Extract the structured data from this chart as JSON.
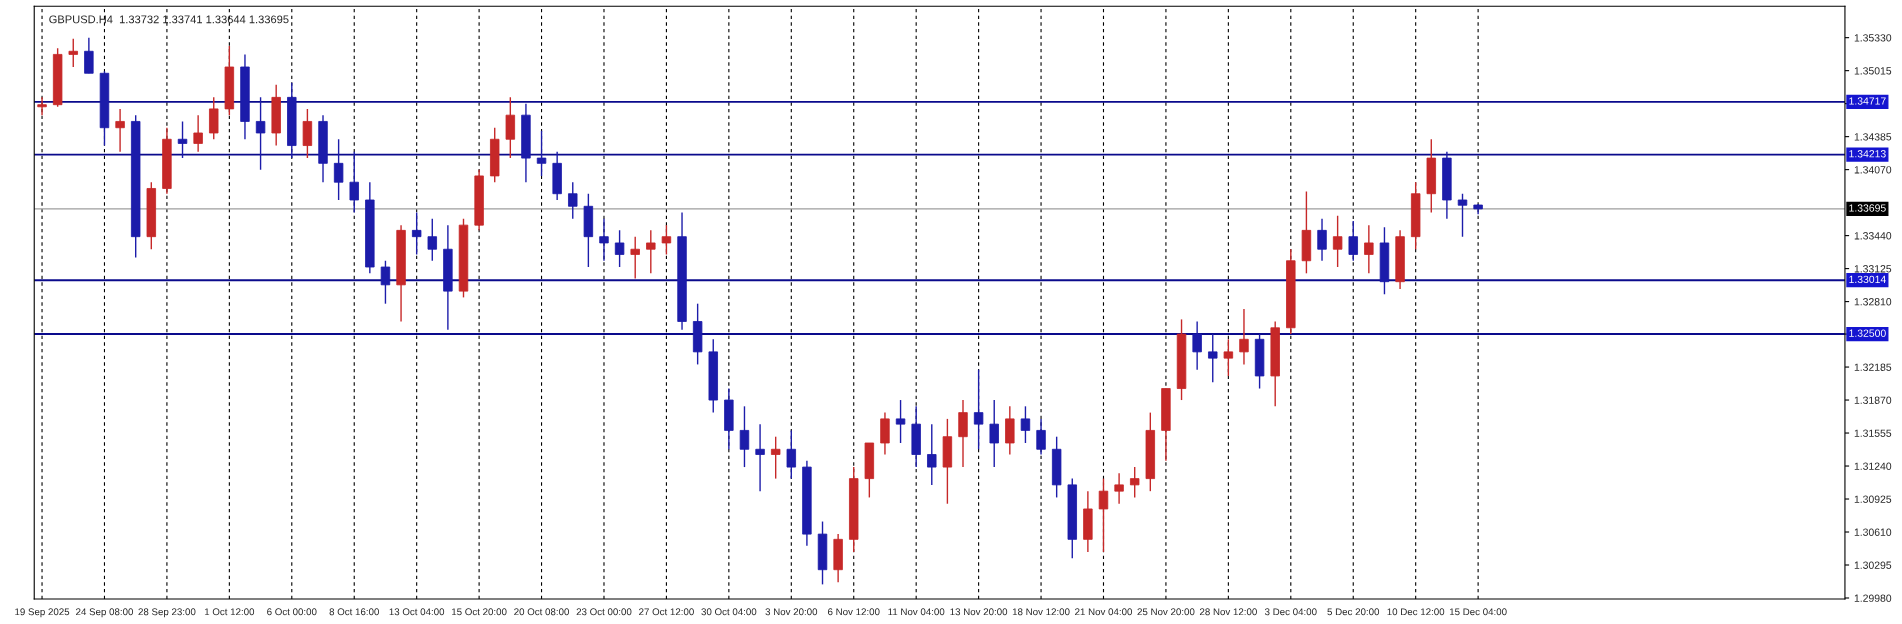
{
  "chart_data": {
    "type": "candlestick",
    "title": "GBPUSD.H4  1.33732 1.33741 1.33644 1.33695",
    "categories": [
      "19 Sep 2025",
      null,
      null,
      null,
      "24 Sep 08:00",
      null,
      null,
      null,
      "28 Sep 23:00",
      null,
      null,
      null,
      "1 Oct 12:00",
      null,
      null,
      null,
      "6 Oct 00:00",
      null,
      null,
      null,
      "8 Oct 16:00",
      null,
      null,
      null,
      "13 Oct 04:00",
      null,
      null,
      null,
      "15 Oct 20:00",
      null,
      null,
      null,
      "20 Oct 08:00",
      null,
      null,
      null,
      "23 Oct 00:00",
      null,
      null,
      null,
      "27 Oct 12:00",
      null,
      null,
      null,
      "30 Oct 04:00",
      null,
      null,
      null,
      "3 Nov 20:00",
      null,
      null,
      null,
      "6 Nov 12:00",
      null,
      null,
      null,
      "11 Nov 04:00",
      null,
      null,
      null,
      "13 Nov 20:00",
      null,
      null,
      null,
      "18 Nov 12:00",
      null,
      null,
      null,
      "21 Nov 04:00",
      null,
      null,
      null,
      "25 Nov 20:00",
      null,
      null,
      null,
      "28 Nov 12:00",
      null,
      null,
      null,
      "3 Dec 04:00",
      null,
      null,
      null,
      "5 Dec 20:00",
      null,
      null,
      null,
      "10 Dec 12:00",
      null,
      null,
      null,
      "15 Dec 04:00",
      null,
      null,
      null,
      null,
      null,
      null,
      null,
      null,
      null,
      null,
      null,
      null,
      null,
      null,
      null,
      null,
      null,
      null,
      null,
      null,
      null,
      null,
      null
    ],
    "ohlc": [
      [
        1.3467,
        1.3476,
        1.3459,
        1.3469
      ],
      [
        1.3469,
        1.3523,
        1.3467,
        1.3517
      ],
      [
        1.3517,
        1.3532,
        1.3505,
        1.352
      ],
      [
        1.352,
        1.3533,
        1.3499,
        1.3499
      ],
      [
        1.3499,
        1.3501,
        1.343,
        1.3447
      ],
      [
        1.3447,
        1.3465,
        1.3424,
        1.3453
      ],
      [
        1.3453,
        1.3459,
        1.3323,
        1.3343
      ],
      [
        1.3343,
        1.3395,
        1.3331,
        1.3389
      ],
      [
        1.3389,
        1.3447,
        1.3384,
        1.3436
      ],
      [
        1.3436,
        1.3453,
        1.3418,
        1.3432
      ],
      [
        1.3432,
        1.3459,
        1.3424,
        1.3442
      ],
      [
        1.3442,
        1.3476,
        1.3436,
        1.3465
      ],
      [
        1.3465,
        1.3525,
        1.3459,
        1.3505
      ],
      [
        1.3505,
        1.3517,
        1.3436,
        1.3453
      ],
      [
        1.3453,
        1.3476,
        1.3407,
        1.3442
      ],
      [
        1.3442,
        1.3488,
        1.343,
        1.3476
      ],
      [
        1.3476,
        1.349,
        1.3418,
        1.343
      ],
      [
        1.343,
        1.3465,
        1.3418,
        1.3453
      ],
      [
        1.3453,
        1.3459,
        1.3395,
        1.3413
      ],
      [
        1.3413,
        1.3436,
        1.3378,
        1.3395
      ],
      [
        1.3395,
        1.3424,
        1.3366,
        1.3378
      ],
      [
        1.3378,
        1.3395,
        1.3308,
        1.3314
      ],
      [
        1.3314,
        1.332,
        1.3279,
        1.3297
      ],
      [
        1.3297,
        1.3354,
        1.3262,
        1.3349
      ],
      [
        1.3349,
        1.3366,
        1.3326,
        1.3343
      ],
      [
        1.3343,
        1.336,
        1.332,
        1.3331
      ],
      [
        1.3331,
        1.3354,
        1.3254,
        1.3291
      ],
      [
        1.3291,
        1.336,
        1.3285,
        1.3354
      ],
      [
        1.3354,
        1.3407,
        1.3349,
        1.3401
      ],
      [
        1.3401,
        1.3447,
        1.3395,
        1.3436
      ],
      [
        1.3436,
        1.3476,
        1.3418,
        1.3459
      ],
      [
        1.3459,
        1.347,
        1.3395,
        1.3418
      ],
      [
        1.3418,
        1.3444,
        1.3401,
        1.3413
      ],
      [
        1.3413,
        1.3424,
        1.3378,
        1.3384
      ],
      [
        1.3384,
        1.3395,
        1.336,
        1.3372
      ],
      [
        1.3372,
        1.3384,
        1.3314,
        1.3343
      ],
      [
        1.3343,
        1.336,
        1.332,
        1.3337
      ],
      [
        1.3337,
        1.3349,
        1.3314,
        1.3326
      ],
      [
        1.3326,
        1.3343,
        1.3303,
        1.3331
      ],
      [
        1.3331,
        1.3349,
        1.3308,
        1.3337
      ],
      [
        1.3337,
        1.3354,
        1.3326,
        1.3343
      ],
      [
        1.3343,
        1.3366,
        1.3254,
        1.3262
      ],
      [
        1.3262,
        1.3279,
        1.3221,
        1.3233
      ],
      [
        1.3233,
        1.3245,
        1.3175,
        1.3187
      ],
      [
        1.3187,
        1.3198,
        1.314,
        1.3158
      ],
      [
        1.3158,
        1.3181,
        1.3123,
        1.314
      ],
      [
        1.314,
        1.3164,
        1.31,
        1.3135
      ],
      [
        1.3135,
        1.3152,
        1.3112,
        1.314
      ],
      [
        1.314,
        1.3158,
        1.3112,
        1.3123
      ],
      [
        1.3123,
        1.3129,
        1.3048,
        1.3059
      ],
      [
        1.3059,
        1.3071,
        1.3011,
        1.3025
      ],
      [
        1.3025,
        1.3059,
        1.3013,
        1.3054
      ],
      [
        1.3054,
        1.3123,
        1.3042,
        1.3112
      ],
      [
        1.3112,
        1.3146,
        1.3094,
        1.3146
      ],
      [
        1.3146,
        1.3175,
        1.3135,
        1.3169
      ],
      [
        1.3169,
        1.3187,
        1.3146,
        1.3164
      ],
      [
        1.3164,
        1.3181,
        1.3123,
        1.3135
      ],
      [
        1.3135,
        1.3164,
        1.3106,
        1.3123
      ],
      [
        1.3123,
        1.3169,
        1.3088,
        1.3152
      ],
      [
        1.3152,
        1.3187,
        1.3123,
        1.3175
      ],
      [
        1.3175,
        1.3216,
        1.314,
        1.3164
      ],
      [
        1.3164,
        1.3187,
        1.3123,
        1.3146
      ],
      [
        1.3146,
        1.3181,
        1.3135,
        1.3169
      ],
      [
        1.3169,
        1.3181,
        1.3146,
        1.3158
      ],
      [
        1.3158,
        1.3169,
        1.3135,
        1.314
      ],
      [
        1.314,
        1.3152,
        1.3094,
        1.3106
      ],
      [
        1.3106,
        1.3112,
        1.3036,
        1.3054
      ],
      [
        1.3054,
        1.31,
        1.3042,
        1.3083
      ],
      [
        1.3083,
        1.3112,
        1.3042,
        1.31
      ],
      [
        1.31,
        1.3117,
        1.3088,
        1.3106
      ],
      [
        1.3106,
        1.3123,
        1.3094,
        1.3112
      ],
      [
        1.3112,
        1.3175,
        1.31,
        1.3158
      ],
      [
        1.3158,
        1.3198,
        1.3129,
        1.3198
      ],
      [
        1.3198,
        1.3264,
        1.3187,
        1.325
      ],
      [
        1.325,
        1.3262,
        1.3216,
        1.3233
      ],
      [
        1.3233,
        1.325,
        1.3204,
        1.3227
      ],
      [
        1.3227,
        1.3245,
        1.321,
        1.3233
      ],
      [
        1.3233,
        1.3274,
        1.3221,
        1.3245
      ],
      [
        1.3245,
        1.325,
        1.3198,
        1.321
      ],
      [
        1.321,
        1.3262,
        1.3181,
        1.3256
      ],
      [
        1.3256,
        1.3331,
        1.325,
        1.332
      ],
      [
        1.332,
        1.3386,
        1.3308,
        1.3349
      ],
      [
        1.3349,
        1.336,
        1.332,
        1.3331
      ],
      [
        1.3331,
        1.3363,
        1.3314,
        1.3343
      ],
      [
        1.3343,
        1.3358,
        1.332,
        1.3326
      ],
      [
        1.3326,
        1.3354,
        1.3308,
        1.3337
      ],
      [
        1.3337,
        1.3352,
        1.3288,
        1.33
      ],
      [
        1.33,
        1.3349,
        1.3293,
        1.3343
      ],
      [
        1.3343,
        1.3395,
        1.3331,
        1.3384
      ],
      [
        1.3384,
        1.3436,
        1.3366,
        1.3418
      ],
      [
        1.3418,
        1.3424,
        1.336,
        1.3378
      ],
      [
        1.3378,
        1.3384,
        1.3343,
        1.3373
      ],
      [
        1.33732,
        1.33741,
        1.33644,
        1.33695
      ],
      null,
      null,
      null,
      null,
      null,
      null,
      null,
      null,
      null,
      null,
      null,
      null,
      null,
      null,
      null,
      null,
      null,
      null,
      null,
      null,
      null,
      null,
      null
    ],
    "colors": [
      "#c62828",
      "#c62828",
      "#c62828",
      "#1c1caa",
      "#1c1caa",
      "#c62828",
      "#1c1caa",
      "#c62828",
      "#c62828",
      "#1c1caa",
      "#c62828",
      "#c62828",
      "#c62828",
      "#1c1caa",
      "#1c1caa",
      "#c62828",
      "#1c1caa",
      "#c62828",
      "#1c1caa",
      "#1c1caa",
      "#1c1caa",
      "#1c1caa",
      "#1c1caa",
      "#c62828",
      "#1c1caa",
      "#1c1caa",
      "#1c1caa",
      "#c62828",
      "#c62828",
      "#c62828",
      "#c62828",
      "#1c1caa",
      "#1c1caa",
      "#1c1caa",
      "#1c1caa",
      "#1c1caa",
      "#1c1caa",
      "#1c1caa",
      "#c62828",
      "#c62828",
      "#c62828",
      "#1c1caa",
      "#1c1caa",
      "#1c1caa",
      "#1c1caa",
      "#1c1caa",
      "#1c1caa",
      "#c62828",
      "#1c1caa",
      "#1c1caa",
      "#1c1caa",
      "#c62828",
      "#c62828",
      "#c62828",
      "#c62828",
      "#1c1caa",
      "#1c1caa",
      "#1c1caa",
      "#c62828",
      "#c62828",
      "#1c1caa",
      "#1c1caa",
      "#c62828",
      "#1c1caa",
      "#1c1caa",
      "#1c1caa",
      "#1c1caa",
      "#c62828",
      "#c62828",
      "#c62828",
      "#c62828",
      "#c62828",
      "#c62828",
      "#c62828",
      "#1c1caa",
      "#1c1caa",
      "#c62828",
      "#c62828",
      "#1c1caa",
      "#c62828",
      "#c62828",
      "#c62828",
      "#1c1caa",
      "#c62828",
      "#1c1caa",
      "#c62828",
      "#1c1caa",
      "#c62828",
      "#c62828",
      "#c62828",
      "#1c1caa",
      "#1c1caa",
      "#1c1caa",
      null,
      null,
      null,
      null,
      null,
      null,
      null,
      null,
      null,
      null,
      null,
      null,
      null,
      null,
      null,
      null,
      null,
      null,
      null,
      null,
      null,
      null,
      null
    ],
    "ylim": [
      1.2997,
      1.3563
    ],
    "yticks": [
      {
        "value": 1.2998,
        "label": "1.29980"
      },
      {
        "value": 1.30295,
        "label": "1.30295"
      },
      {
        "value": 1.3061,
        "label": "1.30610"
      },
      {
        "value": 1.30925,
        "label": "1.30925"
      },
      {
        "value": 1.3124,
        "label": "1.31240"
      },
      {
        "value": 1.31555,
        "label": "1.31555"
      },
      {
        "value": 1.3187,
        "label": "1.31870"
      },
      {
        "value": 1.32185,
        "label": "1.32185"
      },
      {
        "value": 1.325,
        "label": null
      },
      {
        "value": 1.3281,
        "label": "1.32810"
      },
      {
        "value": 1.33125,
        "label": "1.33125"
      },
      {
        "value": 1.3344,
        "label": "1.33440"
      },
      {
        "value": 1.3407,
        "label": "1.34070"
      },
      {
        "value": 1.34385,
        "label": "1.34385"
      },
      {
        "value": 1.347,
        "label": null
      },
      {
        "value": 1.35015,
        "label": "1.35015"
      },
      {
        "value": 1.3533,
        "label": "1.35330"
      }
    ],
    "ref_lines": [
      {
        "axis": "y",
        "value": 1.34717,
        "label": "1.34717",
        "color": "#0a0a8c"
      },
      {
        "axis": "y",
        "value": 1.34213,
        "label": "1.34213",
        "color": "#0a0a8c"
      },
      {
        "axis": "y",
        "value": 1.33695,
        "label": "1.33695",
        "color": "#9e9e9e"
      },
      {
        "axis": "y",
        "value": 1.33014,
        "label": "1.33014",
        "color": "#0a0a8c"
      },
      {
        "axis": "y",
        "value": 1.325,
        "label": "1.32500",
        "color": "#0a0a8c"
      }
    ],
    "grid": "x",
    "legend": false
  }
}
